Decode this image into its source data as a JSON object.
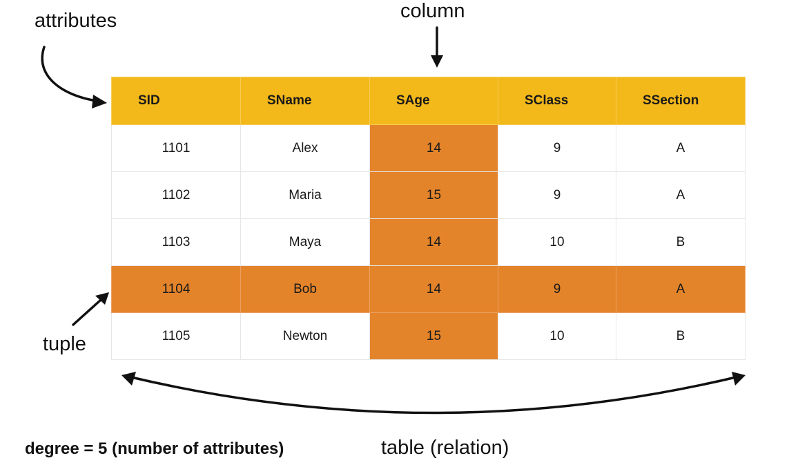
{
  "labels": {
    "attributes": "attributes",
    "column": "column",
    "tuple": "tuple",
    "table_relation": "table (relation)",
    "degree": "degree = 5 (number of attributes)"
  },
  "table": {
    "headers": [
      "SID",
      "SName",
      "SAge",
      "SClass",
      "SSection"
    ],
    "rows": [
      [
        "1101",
        "Alex",
        "14",
        "9",
        "A"
      ],
      [
        "1102",
        "Maria",
        "15",
        "9",
        "A"
      ],
      [
        "1103",
        "Maya",
        "14",
        "10",
        "B"
      ],
      [
        "1104",
        "Bob",
        "14",
        "9",
        "A"
      ],
      [
        "1105",
        "Newton",
        "15",
        "10",
        "B"
      ]
    ],
    "highlighted_column_index": 2,
    "highlighted_row_index": 3
  },
  "colors": {
    "header_fill": "#f3b81a",
    "highlight_fill": "#e4842a",
    "cell_fill": "#ffffff",
    "grid_line": "#e6e6e6"
  }
}
